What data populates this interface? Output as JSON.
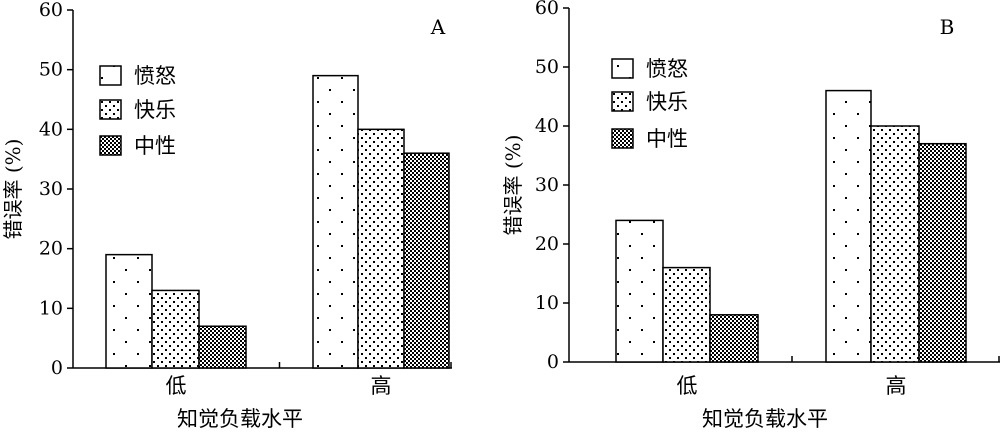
{
  "chart_data": [
    {
      "type": "bar",
      "panel_label": "A",
      "xlabel": "知觉负载水平",
      "ylabel": "错误率 (%)",
      "ylim": [
        0,
        60
      ],
      "yticks": [
        0,
        10,
        20,
        30,
        40,
        50,
        60
      ],
      "categories": [
        "低",
        "高"
      ],
      "legend_placement": "top-left",
      "series": [
        {
          "name": "愤怒",
          "values": [
            19,
            49
          ],
          "pattern": "sparse-dots"
        },
        {
          "name": "快乐",
          "values": [
            13,
            40
          ],
          "pattern": "dense-dots"
        },
        {
          "name": "中性",
          "values": [
            7,
            36
          ],
          "pattern": "crosshatch"
        }
      ]
    },
    {
      "type": "bar",
      "panel_label": "B",
      "xlabel": "知觉负载水平",
      "ylabel": "错误率 (%)",
      "ylim": [
        0,
        60
      ],
      "yticks": [
        0,
        10,
        20,
        30,
        40,
        50,
        60
      ],
      "categories": [
        "低",
        "高"
      ],
      "legend_placement": "top-left",
      "series": [
        {
          "name": "愤怒",
          "values": [
            24,
            46
          ],
          "pattern": "sparse-dots"
        },
        {
          "name": "快乐",
          "values": [
            16,
            40
          ],
          "pattern": "dense-dots"
        },
        {
          "name": "中性",
          "values": [
            8,
            37
          ],
          "pattern": "crosshatch"
        }
      ]
    }
  ]
}
